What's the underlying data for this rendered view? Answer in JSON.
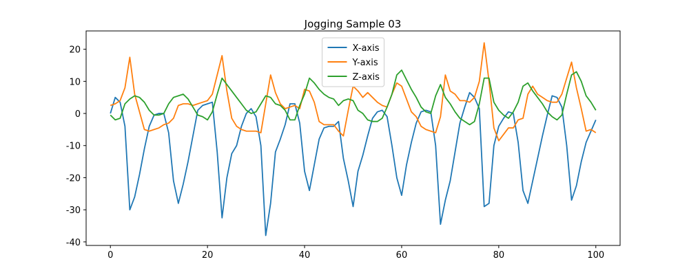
{
  "chart_data": {
    "type": "line",
    "title": "Jogging Sample 03",
    "x": [
      0,
      1,
      2,
      3,
      4,
      5,
      6,
      7,
      8,
      9,
      10,
      11,
      12,
      13,
      14,
      15,
      16,
      17,
      18,
      19,
      20,
      21,
      22,
      23,
      24,
      25,
      26,
      27,
      28,
      29,
      30,
      31,
      32,
      33,
      34,
      35,
      36,
      37,
      38,
      39,
      40,
      41,
      42,
      43,
      44,
      45,
      46,
      47,
      48,
      49,
      50,
      51,
      52,
      53,
      54,
      55,
      56,
      57,
      58,
      59,
      60,
      61,
      62,
      63,
      64,
      65,
      66,
      67,
      68,
      69,
      70,
      71,
      72,
      73,
      74,
      75,
      76,
      77,
      78,
      79,
      80,
      81,
      82,
      83,
      84,
      85,
      86,
      87,
      88,
      89,
      90,
      91,
      92,
      93,
      94,
      95,
      96,
      97,
      98,
      99,
      100
    ],
    "series": [
      {
        "name": "X-axis",
        "color": "#1f77b4",
        "values": [
          0,
          5,
          3.5,
          -4,
          -30,
          -26,
          -19,
          -11,
          -4,
          -0.5,
          0,
          0,
          -6,
          -21,
          -28,
          -22,
          -15,
          -7,
          1,
          2.5,
          3,
          3.5,
          -12,
          -32.5,
          -20,
          -12.5,
          -10,
          -4,
          0,
          1.5,
          -1,
          -10,
          -38,
          -28,
          -12,
          -8,
          -3.5,
          3,
          3,
          -3,
          -18,
          -24,
          -16,
          -8,
          -4.5,
          -4,
          -4,
          -2.5,
          -14,
          -21,
          -29,
          -18,
          -13,
          -7,
          -1.5,
          0.5,
          1,
          -1,
          -10,
          -20,
          -25.5,
          -16,
          -9,
          -3,
          0.5,
          1,
          0.5,
          -10,
          -34.5,
          -27,
          -21,
          -12,
          -3,
          2,
          6.5,
          5,
          1.5,
          -29,
          -28,
          -10,
          -4,
          -1.5,
          0.5,
          0,
          -9,
          -24,
          -28,
          -21,
          -14,
          -7,
          -0.5,
          5.5,
          5,
          2,
          -10,
          -27,
          -22.5,
          -15,
          -9,
          -5.5,
          -2
        ]
      },
      {
        "name": "Y-axis",
        "color": "#ff7f0e",
        "values": [
          2.5,
          3,
          4,
          8,
          17.5,
          6,
          0.5,
          -5,
          -5.5,
          -5,
          -4.5,
          -3.5,
          -3,
          -1.5,
          2.5,
          3,
          3,
          2.5,
          3,
          3.5,
          4,
          6,
          12,
          18,
          7,
          -1.5,
          -4,
          -5,
          -5.5,
          -5.5,
          -5.5,
          -6,
          3,
          12,
          6.5,
          3,
          1.5,
          2,
          2.5,
          1.5,
          7.5,
          7,
          3.5,
          -2.5,
          -3.5,
          -3.5,
          -3.5,
          -5.5,
          -7,
          1,
          8.5,
          7,
          5,
          6.5,
          5,
          3.5,
          2.5,
          2,
          6,
          9.5,
          8.5,
          4.5,
          0.5,
          -1,
          -4,
          -5,
          -5.5,
          -6,
          -1,
          12,
          7,
          6,
          4,
          4,
          3.5,
          5,
          10,
          22,
          10,
          -4.5,
          -8.5,
          -6.5,
          -4.5,
          -4.5,
          -2,
          -1.5,
          6,
          8.5,
          6,
          5,
          4,
          3.5,
          3.5,
          6,
          11,
          16,
          8,
          1.5,
          -5.5,
          -5,
          -6
        ]
      },
      {
        "name": "Z-axis",
        "color": "#2ca02c",
        "values": [
          -0.5,
          -2,
          -1.5,
          3,
          4.5,
          5.5,
          5,
          3.5,
          1,
          -0.5,
          -0.5,
          0,
          3,
          5,
          5.5,
          6,
          4.5,
          2,
          -0.5,
          -1,
          -2,
          0.5,
          6,
          11,
          9,
          7,
          5,
          3,
          1,
          0,
          0.5,
          3,
          5.5,
          5,
          3,
          2.5,
          1,
          -2,
          -2,
          2.5,
          6,
          11,
          9.5,
          7.5,
          6,
          5,
          4.5,
          2.5,
          4,
          4.5,
          4,
          1,
          0,
          -2,
          -2.5,
          -2.5,
          -1.5,
          2,
          6,
          12,
          13.5,
          10.5,
          7.5,
          5,
          2,
          0.5,
          0,
          5.5,
          9,
          5,
          3,
          0.5,
          -1.5,
          -2.5,
          -3.5,
          -2.5,
          3,
          11,
          11,
          3.5,
          1,
          -0.5,
          -1.5,
          0.5,
          3.5,
          8.5,
          9.5,
          7,
          5,
          3,
          0.5,
          -1,
          -2,
          -0.5,
          6,
          12,
          13,
          10,
          5.5,
          3.5,
          1
        ]
      }
    ],
    "xlim": [
      -5,
      105
    ],
    "ylim": [
      -41.1,
      25.7
    ],
    "xticks": [
      0,
      20,
      40,
      60,
      80,
      100
    ],
    "yticks": [
      -40,
      -30,
      -20,
      -10,
      0,
      10,
      20
    ],
    "legend": "upper center",
    "grid": false
  }
}
